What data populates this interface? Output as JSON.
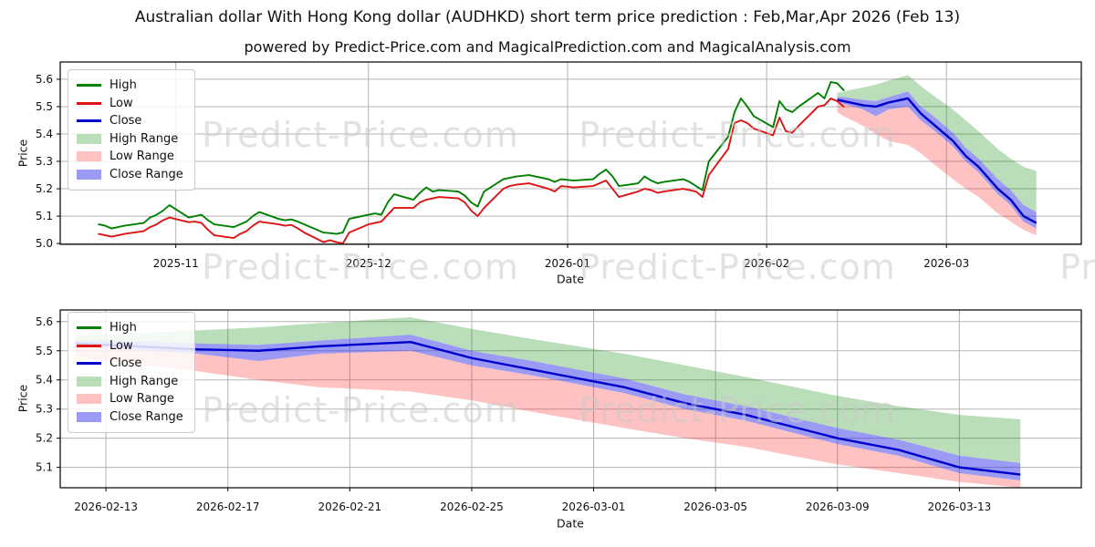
{
  "title": "Australian dollar With Hong Kong dollar (AUDHKD) short term price prediction : Feb,Mar,Apr 2026 (Feb 13)",
  "subtitle": "powered by Predict-Price.com and MagicalPrediction.com and MagicalAnalysis.com",
  "watermark_text": "Predict-Price.com",
  "colors": {
    "high_line": "#008000",
    "low_line": "#dc1414",
    "close_line": "#0000cc",
    "high_range": "rgba(0,128,0,0.27)",
    "low_range": "rgba(255,20,20,0.26)",
    "close_range": "rgba(45,45,235,0.48)",
    "grid": "#b3b3b3",
    "spine": "#000000",
    "tick_text": "#111111"
  },
  "legend": {
    "items": [
      {
        "label": "High",
        "swatch": "line",
        "color": "#008000"
      },
      {
        "label": "Low",
        "swatch": "line",
        "color": "#dc1414"
      },
      {
        "label": "Close",
        "swatch": "line",
        "color": "#0000cc"
      },
      {
        "label": "High Range",
        "swatch": "patch",
        "color": "rgba(0,128,0,0.27)"
      },
      {
        "label": "Low Range",
        "swatch": "patch",
        "color": "rgba(255,20,20,0.26)"
      },
      {
        "label": "Close Range",
        "swatch": "patch",
        "color": "rgba(45,45,235,0.48)"
      }
    ]
  },
  "chart_data": {
    "type": "line",
    "title": "Australian dollar With Hong Kong dollar (AUDHKD) short term price prediction : Feb,Mar,Apr 2026 (Feb 13)",
    "historical": {
      "dates": [
        "2025-10-20",
        "2025-10-21",
        "2025-10-22",
        "2025-10-23",
        "2025-10-24",
        "2025-10-27",
        "2025-10-28",
        "2025-10-29",
        "2025-10-30",
        "2025-10-31",
        "2025-11-03",
        "2025-11-04",
        "2025-11-05",
        "2025-11-06",
        "2025-11-07",
        "2025-11-10",
        "2025-11-11",
        "2025-11-12",
        "2025-11-13",
        "2025-11-14",
        "2025-11-17",
        "2025-11-18",
        "2025-11-19",
        "2025-11-20",
        "2025-11-21",
        "2025-11-24",
        "2025-11-25",
        "2025-11-26",
        "2025-11-27",
        "2025-11-28",
        "2025-12-01",
        "2025-12-02",
        "2025-12-03",
        "2025-12-04",
        "2025-12-05",
        "2025-12-08",
        "2025-12-09",
        "2025-12-10",
        "2025-12-11",
        "2025-12-12",
        "2025-12-15",
        "2025-12-16",
        "2025-12-17",
        "2025-12-18",
        "2025-12-19",
        "2025-12-22",
        "2025-12-23",
        "2025-12-24",
        "2025-12-26",
        "2025-12-29",
        "2025-12-30",
        "2025-12-31",
        "2026-01-02",
        "2026-01-05",
        "2026-01-06",
        "2026-01-07",
        "2026-01-08",
        "2026-01-09",
        "2026-01-12",
        "2026-01-13",
        "2026-01-14",
        "2026-01-15",
        "2026-01-16",
        "2026-01-19",
        "2026-01-20",
        "2026-01-21",
        "2026-01-22",
        "2026-01-23",
        "2026-01-26",
        "2026-01-27",
        "2026-01-28",
        "2026-01-29",
        "2026-01-30",
        "2026-02-02",
        "2026-02-03",
        "2026-02-04",
        "2026-02-05",
        "2026-02-06",
        "2026-02-09",
        "2026-02-10",
        "2026-02-11",
        "2026-02-12",
        "2026-02-13"
      ],
      "high": [
        5.07,
        5.065,
        5.055,
        5.06,
        5.065,
        5.075,
        5.095,
        5.105,
        5.12,
        5.14,
        5.095,
        5.1,
        5.105,
        5.085,
        5.07,
        5.06,
        5.07,
        5.08,
        5.1,
        5.115,
        5.09,
        5.085,
        5.088,
        5.08,
        5.07,
        5.04,
        5.038,
        5.035,
        5.04,
        5.09,
        5.105,
        5.11,
        5.105,
        5.15,
        5.18,
        5.16,
        5.185,
        5.205,
        5.19,
        5.195,
        5.19,
        5.175,
        5.15,
        5.135,
        5.19,
        5.235,
        5.24,
        5.245,
        5.25,
        5.235,
        5.225,
        5.235,
        5.23,
        5.235,
        5.255,
        5.27,
        5.245,
        5.21,
        5.22,
        5.245,
        5.23,
        5.22,
        5.225,
        5.235,
        5.225,
        5.21,
        5.195,
        5.3,
        5.39,
        5.48,
        5.53,
        5.5,
        5.465,
        5.425,
        5.52,
        5.49,
        5.48,
        5.5,
        5.55,
        5.53,
        5.59,
        5.585,
        5.56
      ],
      "low": [
        5.035,
        5.03,
        5.025,
        5.03,
        5.035,
        5.045,
        5.06,
        5.07,
        5.085,
        5.095,
        5.078,
        5.08,
        5.075,
        5.05,
        5.03,
        5.02,
        5.035,
        5.045,
        5.065,
        5.08,
        5.07,
        5.065,
        5.068,
        5.055,
        5.04,
        5.005,
        5.012,
        5.005,
        5.0,
        5.04,
        5.07,
        5.075,
        5.08,
        5.105,
        5.13,
        5.13,
        5.15,
        5.16,
        5.165,
        5.17,
        5.165,
        5.15,
        5.12,
        5.1,
        5.13,
        5.2,
        5.21,
        5.215,
        5.22,
        5.2,
        5.19,
        5.21,
        5.205,
        5.21,
        5.22,
        5.23,
        5.2,
        5.17,
        5.19,
        5.2,
        5.195,
        5.185,
        5.19,
        5.2,
        5.195,
        5.19,
        5.17,
        5.25,
        5.345,
        5.44,
        5.45,
        5.44,
        5.42,
        5.395,
        5.46,
        5.41,
        5.405,
        5.43,
        5.5,
        5.505,
        5.53,
        5.52,
        5.5
      ]
    },
    "prediction": {
      "dates": [
        "2026-02-12",
        "2026-02-13",
        "2026-02-16",
        "2026-02-18",
        "2026-02-20",
        "2026-02-23",
        "2026-02-25",
        "2026-02-27",
        "2026-03-02",
        "2026-03-04",
        "2026-03-06",
        "2026-03-09",
        "2026-03-11",
        "2026-03-13",
        "2026-03-15"
      ],
      "close": [
        5.525,
        5.52,
        5.505,
        5.5,
        5.515,
        5.53,
        5.475,
        5.435,
        5.375,
        5.32,
        5.28,
        5.2,
        5.16,
        5.1,
        5.075
      ],
      "high_upper": [
        5.55,
        5.555,
        5.57,
        5.58,
        5.595,
        5.615,
        5.575,
        5.54,
        5.49,
        5.45,
        5.41,
        5.345,
        5.31,
        5.28,
        5.265
      ],
      "low_lower": [
        5.48,
        5.465,
        5.43,
        5.4,
        5.375,
        5.36,
        5.33,
        5.29,
        5.235,
        5.2,
        5.17,
        5.11,
        5.08,
        5.05,
        5.03
      ],
      "close_upper": [
        5.535,
        5.535,
        5.525,
        5.52,
        5.535,
        5.555,
        5.5,
        5.465,
        5.405,
        5.35,
        5.31,
        5.235,
        5.195,
        5.14,
        5.115
      ],
      "close_lower": [
        5.515,
        5.51,
        5.49,
        5.465,
        5.49,
        5.5,
        5.45,
        5.415,
        5.355,
        5.3,
        5.26,
        5.18,
        5.14,
        5.08,
        5.055
      ]
    },
    "top_chart": {
      "ylabel": "Price",
      "xlabel": "Date",
      "ylim": [
        4.997,
        5.663
      ],
      "xlim": [
        "2025-10-14",
        "2026-03-22"
      ],
      "grid": true,
      "yticks": [
        "5.0",
        "5.1",
        "5.2",
        "5.3",
        "5.4",
        "5.5",
        "5.6"
      ],
      "xticks": [
        {
          "date": "2025-11-01",
          "label": "2025-11"
        },
        {
          "date": "2025-12-01",
          "label": "2025-12"
        },
        {
          "date": "2026-01-01",
          "label": "2026-01"
        },
        {
          "date": "2026-02-01",
          "label": "2026-02"
        },
        {
          "date": "2026-03-01",
          "label": "2026-03"
        }
      ],
      "series_shown": [
        "historical-high",
        "historical-low",
        "prediction-close",
        "high-range",
        "low-range",
        "close-range"
      ],
      "legend_position": "upper left"
    },
    "bottom_chart": {
      "ylabel": "Price",
      "xlabel": "Date",
      "ylim": [
        5.03,
        5.64
      ],
      "xlim": [
        "2026-02-11T12:00:00",
        "2026-03-17T00:00:00"
      ],
      "grid": true,
      "yticks": [
        "5.1",
        "5.2",
        "5.3",
        "5.4",
        "5.5",
        "5.6"
      ],
      "xticks": [
        {
          "date": "2026-02-13",
          "label": "2026-02-13"
        },
        {
          "date": "2026-02-17",
          "label": "2026-02-17"
        },
        {
          "date": "2026-02-21",
          "label": "2026-02-21"
        },
        {
          "date": "2026-02-25",
          "label": "2026-02-25"
        },
        {
          "date": "2026-03-01",
          "label": "2026-03-01"
        },
        {
          "date": "2026-03-05",
          "label": "2026-03-05"
        },
        {
          "date": "2026-03-09",
          "label": "2026-03-09"
        },
        {
          "date": "2026-03-13",
          "label": "2026-03-13"
        }
      ],
      "series_shown": [
        "prediction-close",
        "high-range",
        "low-range",
        "close-range"
      ],
      "legend_position": "upper left"
    }
  }
}
